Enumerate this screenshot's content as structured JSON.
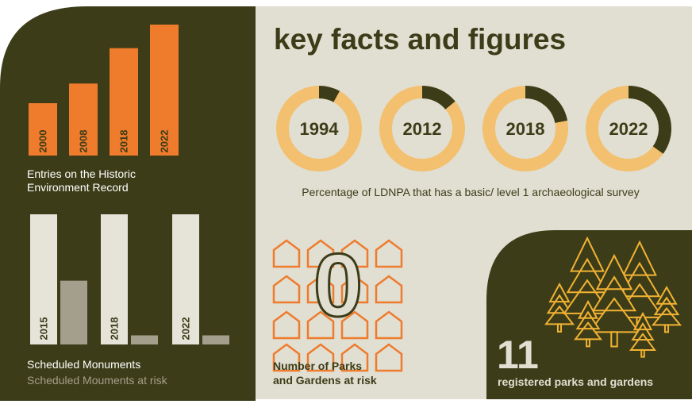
{
  "colors": {
    "dark": "#3c3d18",
    "beige": "#e1ded2",
    "orange": "#ef7b2c",
    "light_orange": "#f2c06e",
    "cream": "#e6e3d9",
    "taupe": "#a49e8c",
    "white": "#ffffff",
    "tree_yellow": "#f2b233"
  },
  "title": "key facts and figures",
  "chart_data": [
    {
      "type": "bar",
      "name": "her-entries",
      "categories": [
        "2000",
        "2008",
        "2018",
        "2022"
      ],
      "values": [
        40,
        55,
        82,
        100
      ],
      "ylim": [
        0,
        100
      ],
      "caption_lines": [
        "Entries on the Historic",
        "Environment Record"
      ]
    },
    {
      "type": "donut",
      "categories": [
        "1994",
        "2012",
        "2018",
        "2022"
      ],
      "values": [
        8,
        14,
        22,
        35
      ],
      "unit": "percent",
      "caption": "Percentage of LDNPA that has a basic/ level 1 archaeological survey"
    },
    {
      "type": "bar",
      "name": "scheduled-monuments",
      "categories": [
        "2015",
        "2018",
        "2022"
      ],
      "series": [
        {
          "name": "Scheduled Monuments",
          "values": [
            100,
            100,
            100
          ]
        },
        {
          "name": "Scheduled Mouments at risk",
          "values": [
            49,
            7,
            7
          ]
        }
      ],
      "ylim": [
        0,
        100
      ],
      "legend": "bottom-left"
    }
  ],
  "parks_at_risk": {
    "value": "0",
    "label_lines": [
      "Number of Parks",
      "and Gardens at risk"
    ],
    "icon": "house-outline-icon",
    "icon_count": 16
  },
  "registered_parks": {
    "value": "11",
    "label": "registered parks and gardens",
    "icon": "tree-icon"
  }
}
